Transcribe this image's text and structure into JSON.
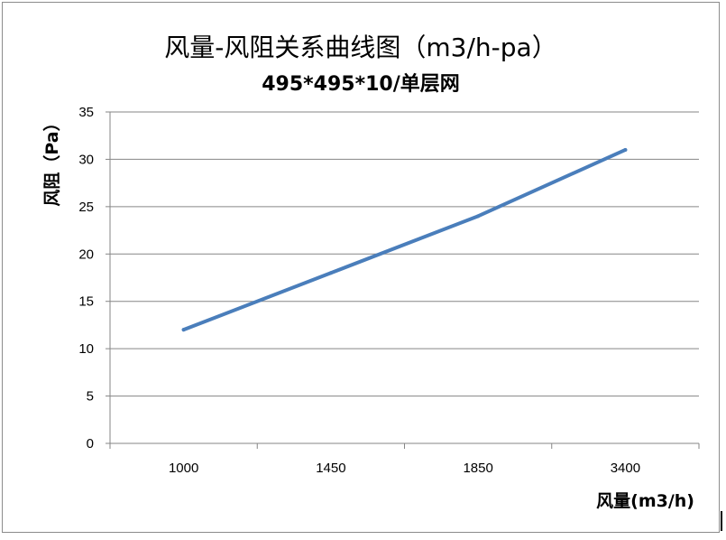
{
  "chart_data": {
    "type": "line",
    "title": "风量-风阻关系曲线图（m3/h-pa）",
    "subtitle": "495*495*10/单层网",
    "xlabel": "风量(m3/h)",
    "ylabel": "风阻（Pa）",
    "categories": [
      "1000",
      "1450",
      "1850",
      "3400"
    ],
    "series": [
      {
        "values": [
          12,
          18,
          24,
          31
        ],
        "color": "#4a7ebb"
      }
    ],
    "ylim": [
      0,
      35
    ],
    "yticks": [
      0,
      5,
      10,
      15,
      20,
      25,
      30,
      35
    ],
    "grid": "horizontal",
    "legend": "none"
  }
}
